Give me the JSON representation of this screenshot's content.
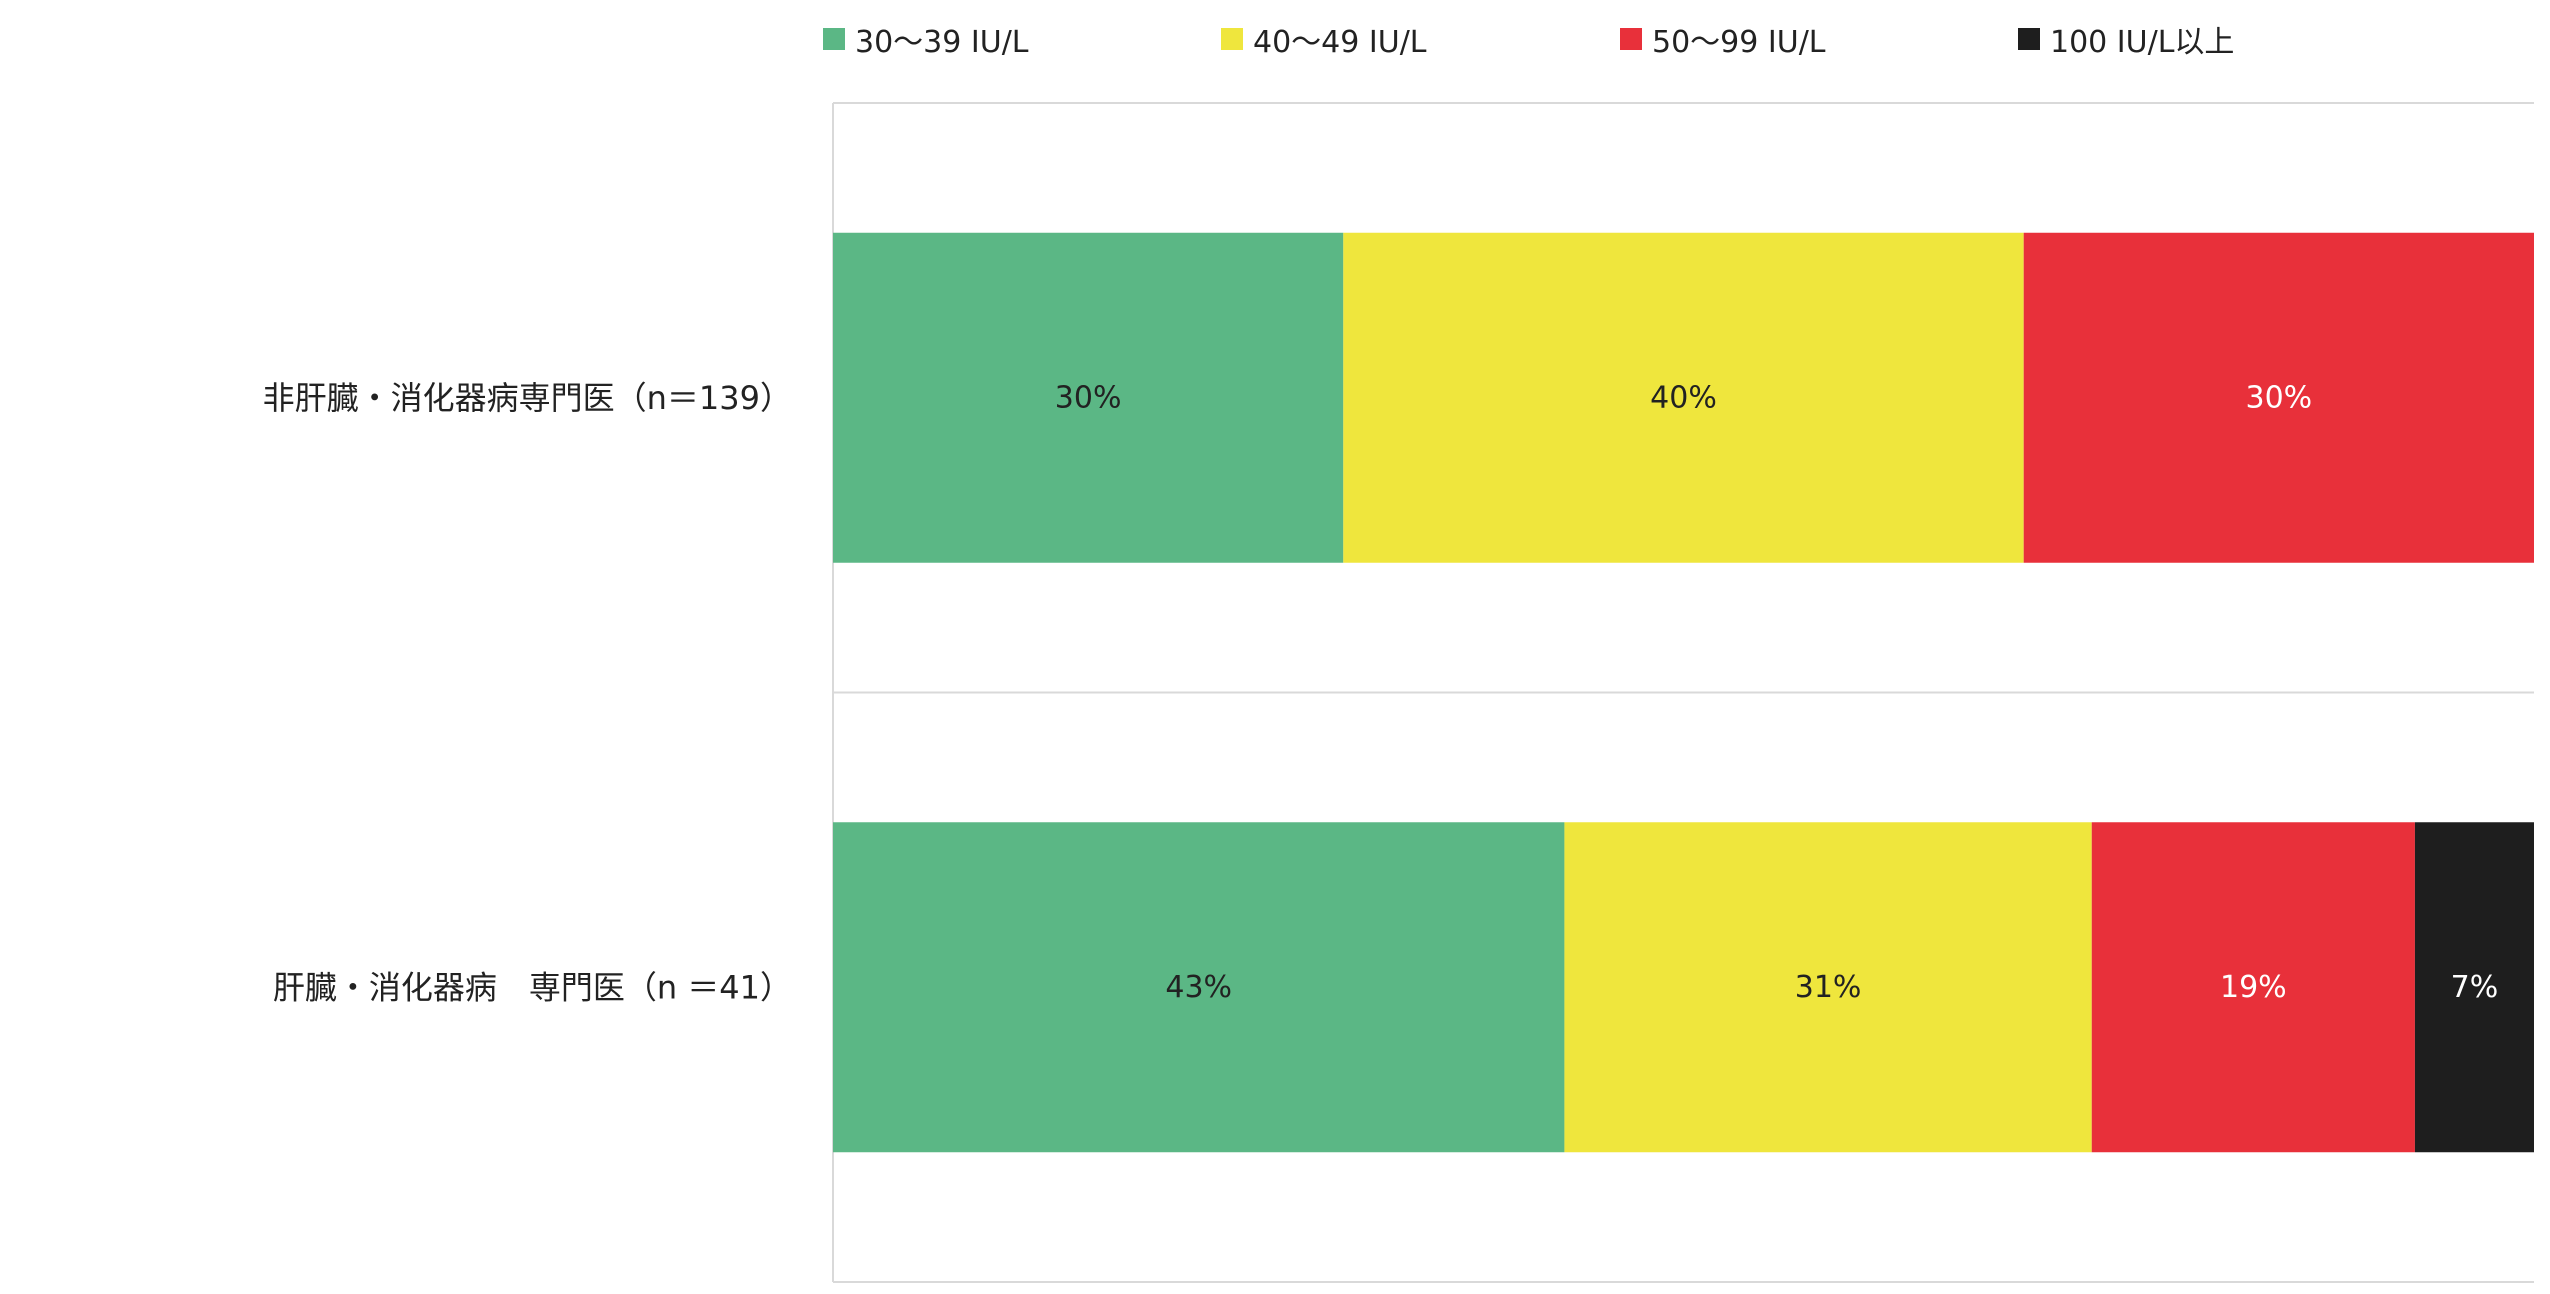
{
  "chart_data": {
    "type": "bar",
    "orientation": "horizontal",
    "stacked": "100%",
    "categories": [
      "非肝臓・消化器病専門医（n＝139）",
      "肝臓・消化器病　専門医（n ＝41）"
    ],
    "series": [
      {
        "name": "30～39 IU/L",
        "color": "#5bb785",
        "values": [
          30,
          43
        ],
        "labels": [
          "30%",
          "43%"
        ],
        "label_color": "#222222"
      },
      {
        "name": "40～49 IU/L",
        "color": "#efe63d",
        "values": [
          40,
          31
        ],
        "labels": [
          "40%",
          "31%"
        ],
        "label_color": "#222222"
      },
      {
        "name": "50～99 IU/L",
        "color": "#e8303a",
        "values": [
          30,
          19
        ],
        "labels": [
          "30%",
          "19%"
        ],
        "label_color": "#ffffff"
      },
      {
        "name": "100 IU/L以上",
        "color": "#1e1e1e",
        "values": [
          0,
          7
        ],
        "labels": [
          "",
          "7%"
        ],
        "label_color": "#ffffff"
      }
    ],
    "xlim": [
      0,
      100
    ],
    "grid": false,
    "legend_position": "top"
  }
}
